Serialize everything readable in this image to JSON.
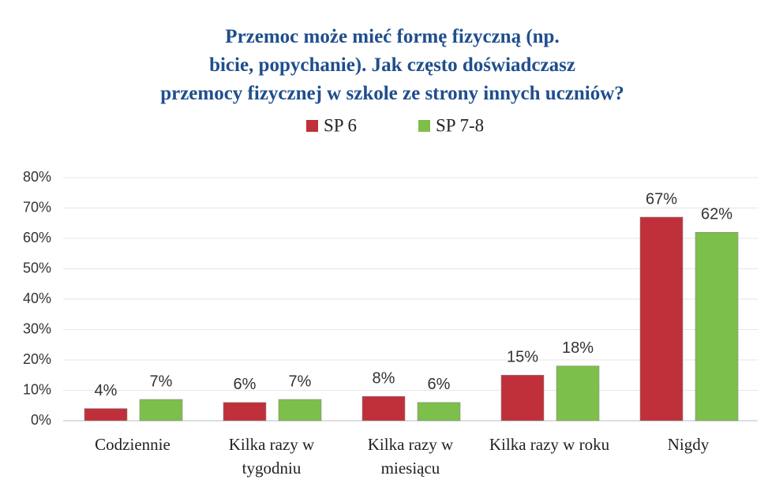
{
  "chart_data": {
    "type": "bar",
    "title": "Przemoc może mieć formę fizyczną (np. bicie, popychanie). Jak często doświadczasz przemocy fizycznej w szkole ze strony innych uczniów?",
    "categories": [
      "Codziennie",
      "Kilka razy w tygodniu",
      "Kilka razy w miesiącu",
      "Kilka razy w roku",
      "Nigdy"
    ],
    "series": [
      {
        "name": "SP 6",
        "color": "#c0303a",
        "values": [
          4,
          6,
          8,
          15,
          67
        ],
        "value_labels": [
          "4%",
          "6%",
          "8%",
          "15%",
          "67%"
        ]
      },
      {
        "name": "SP 7-8",
        "color": "#7cbf4a",
        "values": [
          7,
          7,
          6,
          18,
          62
        ],
        "value_labels": [
          "7%",
          "7%",
          "6%",
          "18%",
          "62%"
        ]
      }
    ],
    "ylim": [
      0,
      80
    ],
    "yticks": [
      {
        "value": 0,
        "label": "0%"
      },
      {
        "value": 10,
        "label": "10%"
      },
      {
        "value": 20,
        "label": "20%"
      },
      {
        "value": 30,
        "label": "30%"
      },
      {
        "value": 40,
        "label": "40%"
      },
      {
        "value": 50,
        "label": "50%"
      },
      {
        "value": 60,
        "label": "60%"
      },
      {
        "value": 70,
        "label": "70%"
      },
      {
        "value": 80,
        "label": "80%"
      }
    ],
    "grid": true,
    "legend": "top"
  }
}
